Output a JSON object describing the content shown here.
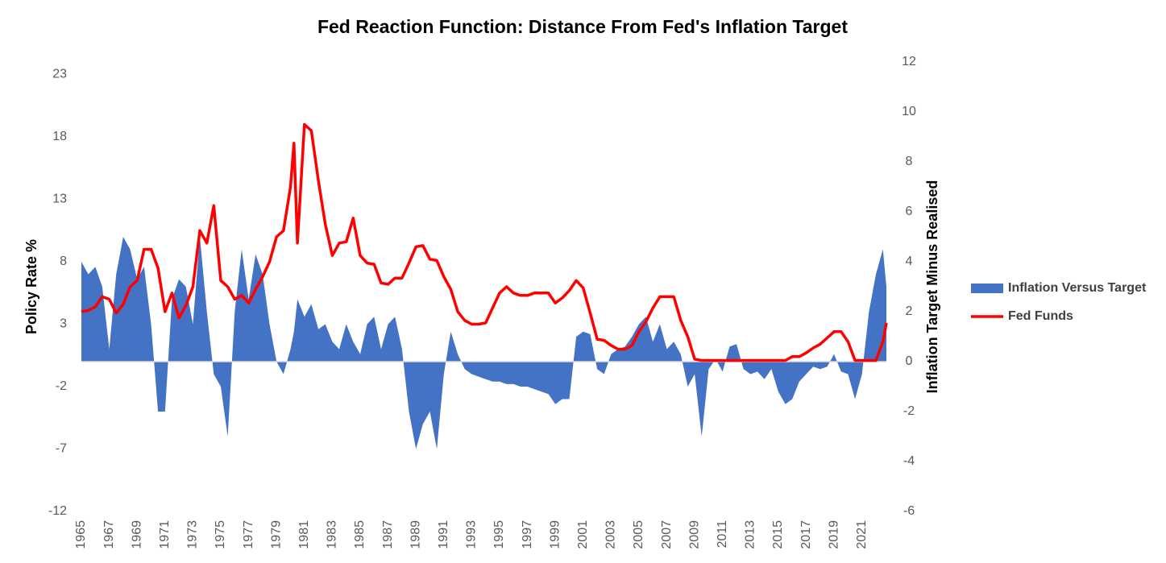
{
  "chart_data": {
    "type": "line",
    "title": "Fed Reaction Function: Distance From Fed's Inflation Target",
    "y_label": "Policy Rate %",
    "y2_label": "Inflation Target Minus Realised",
    "x": [
      1965,
      1965.5,
      1966,
      1966.5,
      1967,
      1967.5,
      1968,
      1968.5,
      1969,
      1969.5,
      1970,
      1970.5,
      1971,
      1971.5,
      1972,
      1972.5,
      1973,
      1973.5,
      1974,
      1974.5,
      1975,
      1975.5,
      1976,
      1976.5,
      1977,
      1977.5,
      1978,
      1978.5,
      1979,
      1979.5,
      1980,
      1980.25,
      1980.5,
      1981,
      1981.5,
      1982,
      1982.5,
      1983,
      1983.5,
      1984,
      1984.5,
      1985,
      1985.5,
      1986,
      1986.5,
      1987,
      1987.5,
      1988,
      1988.5,
      1989,
      1989.5,
      1990,
      1990.5,
      1991,
      1991.5,
      1992,
      1992.5,
      1993,
      1993.5,
      1994,
      1994.5,
      1995,
      1995.5,
      1996,
      1996.5,
      1997,
      1997.5,
      1998,
      1998.5,
      1999,
      1999.5,
      2000,
      2000.5,
      2001,
      2001.5,
      2002,
      2002.5,
      2003,
      2003.5,
      2004,
      2004.5,
      2005,
      2005.5,
      2006,
      2006.5,
      2007,
      2007.5,
      2008,
      2008.5,
      2009,
      2009.5,
      2010,
      2010.5,
      2011,
      2011.5,
      2012,
      2012.5,
      2013,
      2013.5,
      2014,
      2014.5,
      2015,
      2015.5,
      2016,
      2016.5,
      2017,
      2017.5,
      2018,
      2018.5,
      2019,
      2019.5,
      2020,
      2020.5,
      2021,
      2021.5,
      2022,
      2022.5,
      2022.75
    ],
    "series": [
      {
        "name": "Inflation Versus Target",
        "type": "area",
        "axis": "y2",
        "color": "#4472c4",
        "values": [
          4.0,
          3.5,
          3.8,
          3.0,
          0.5,
          3.5,
          5.0,
          4.5,
          3.3,
          3.8,
          1.5,
          -2.0,
          -2.0,
          2.5,
          3.3,
          3.0,
          1.5,
          5.0,
          2.0,
          -0.5,
          -1.0,
          -3.0,
          2.0,
          4.5,
          2.5,
          4.3,
          3.5,
          1.5,
          0.0,
          -0.5,
          0.5,
          1.2,
          2.5,
          1.8,
          2.3,
          1.3,
          1.5,
          0.8,
          0.5,
          1.5,
          0.8,
          0.3,
          1.5,
          1.8,
          0.5,
          1.5,
          1.8,
          0.5,
          -2.0,
          -3.5,
          -2.5,
          -2.0,
          -3.5,
          -0.5,
          1.2,
          0.3,
          -0.3,
          -0.5,
          -0.6,
          -0.7,
          -0.8,
          -0.8,
          -0.9,
          -0.9,
          -1.0,
          -1.0,
          -1.1,
          -1.2,
          -1.3,
          -1.7,
          -1.5,
          -1.5,
          1.0,
          1.2,
          1.1,
          -0.3,
          -0.5,
          0.3,
          0.5,
          0.6,
          1.0,
          1.5,
          1.8,
          0.8,
          1.5,
          0.5,
          0.8,
          0.3,
          -1.0,
          -0.5,
          -3.0,
          -0.3,
          0.1,
          -0.4,
          0.6,
          0.7,
          -0.3,
          -0.5,
          -0.4,
          -0.7,
          -0.3,
          -1.2,
          -1.7,
          -1.5,
          -0.8,
          -0.5,
          -0.2,
          -0.3,
          -0.2,
          0.3,
          -0.4,
          -0.5,
          -1.5,
          -0.5,
          2.0,
          3.5,
          4.5,
          3.0
        ]
      },
      {
        "name": "Fed Funds",
        "type": "line",
        "color": "#ff0000",
        "values": [
          4.0,
          4.1,
          4.4,
          5.2,
          5.0,
          3.9,
          4.6,
          6.0,
          6.5,
          9.0,
          9.0,
          7.5,
          4.0,
          5.5,
          3.5,
          4.5,
          6.0,
          10.5,
          9.5,
          12.5,
          6.5,
          6.0,
          5.0,
          5.3,
          4.7,
          5.8,
          6.8,
          8.0,
          10.0,
          10.5,
          14.0,
          17.5,
          9.5,
          19.0,
          18.5,
          14.5,
          11.0,
          8.5,
          9.5,
          9.6,
          11.5,
          8.5,
          7.9,
          7.8,
          6.3,
          6.2,
          6.7,
          6.7,
          7.9,
          9.2,
          9.3,
          8.2,
          8.1,
          6.8,
          5.8,
          4.0,
          3.3,
          3.0,
          3.0,
          3.1,
          4.3,
          5.5,
          6.0,
          5.5,
          5.3,
          5.3,
          5.5,
          5.5,
          5.5,
          4.7,
          5.1,
          5.7,
          6.5,
          5.9,
          3.9,
          1.8,
          1.7,
          1.3,
          1.0,
          1.0,
          1.3,
          2.4,
          3.2,
          4.3,
          5.2,
          5.2,
          5.2,
          3.3,
          2.0,
          0.2,
          0.1,
          0.1,
          0.1,
          0.1,
          0.1,
          0.1,
          0.1,
          0.1,
          0.1,
          0.1,
          0.1,
          0.1,
          0.1,
          0.4,
          0.4,
          0.7,
          1.1,
          1.4,
          1.9,
          2.4,
          2.4,
          1.6,
          0.1,
          0.1,
          0.1,
          0.1,
          1.6,
          3.1
        ]
      }
    ],
    "xlim": [
      1965,
      2022.75
    ],
    "xticks": [
      1965,
      1967,
      1969,
      1971,
      1973,
      1975,
      1977,
      1979,
      1981,
      1983,
      1985,
      1987,
      1989,
      1991,
      1993,
      1995,
      1997,
      1999,
      2001,
      2003,
      2005,
      2007,
      2009,
      2011,
      2013,
      2015,
      2017,
      2019,
      2021
    ],
    "ylim": [
      -12,
      24
    ],
    "yticks": [
      -12,
      -7,
      -2,
      3,
      8,
      13,
      18,
      23
    ],
    "y2lim": [
      -6,
      12
    ],
    "y2ticks": [
      -6,
      -4,
      -2,
      0,
      2,
      4,
      6,
      8,
      10,
      12
    ],
    "legend": "right"
  }
}
